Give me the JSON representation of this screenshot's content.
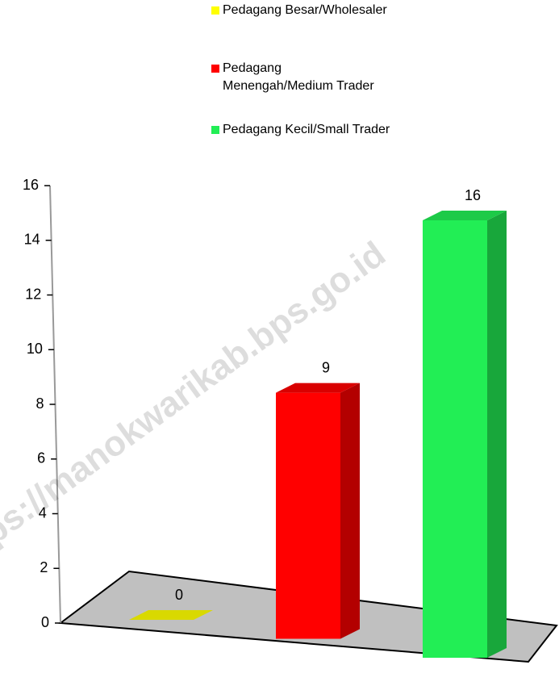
{
  "chart_data": {
    "type": "bar3d",
    "series": [
      {
        "name": "Pedagang Besar/Wholesaler",
        "color": "#ffff00",
        "values": [
          0
        ]
      },
      {
        "name": "Pedagang Menengah/Medium Trader",
        "color": "#ff0000",
        "values": [
          9
        ]
      },
      {
        "name": "Pedagang Kecil/Small Trader",
        "color": "#22ee55",
        "values": [
          16
        ]
      }
    ],
    "ylim": [
      0,
      16
    ],
    "yticks": [
      0,
      2,
      4,
      6,
      8,
      10,
      12,
      14,
      16
    ],
    "legend": "top",
    "watermark": "https://manokwarikab.bps.go.id"
  }
}
